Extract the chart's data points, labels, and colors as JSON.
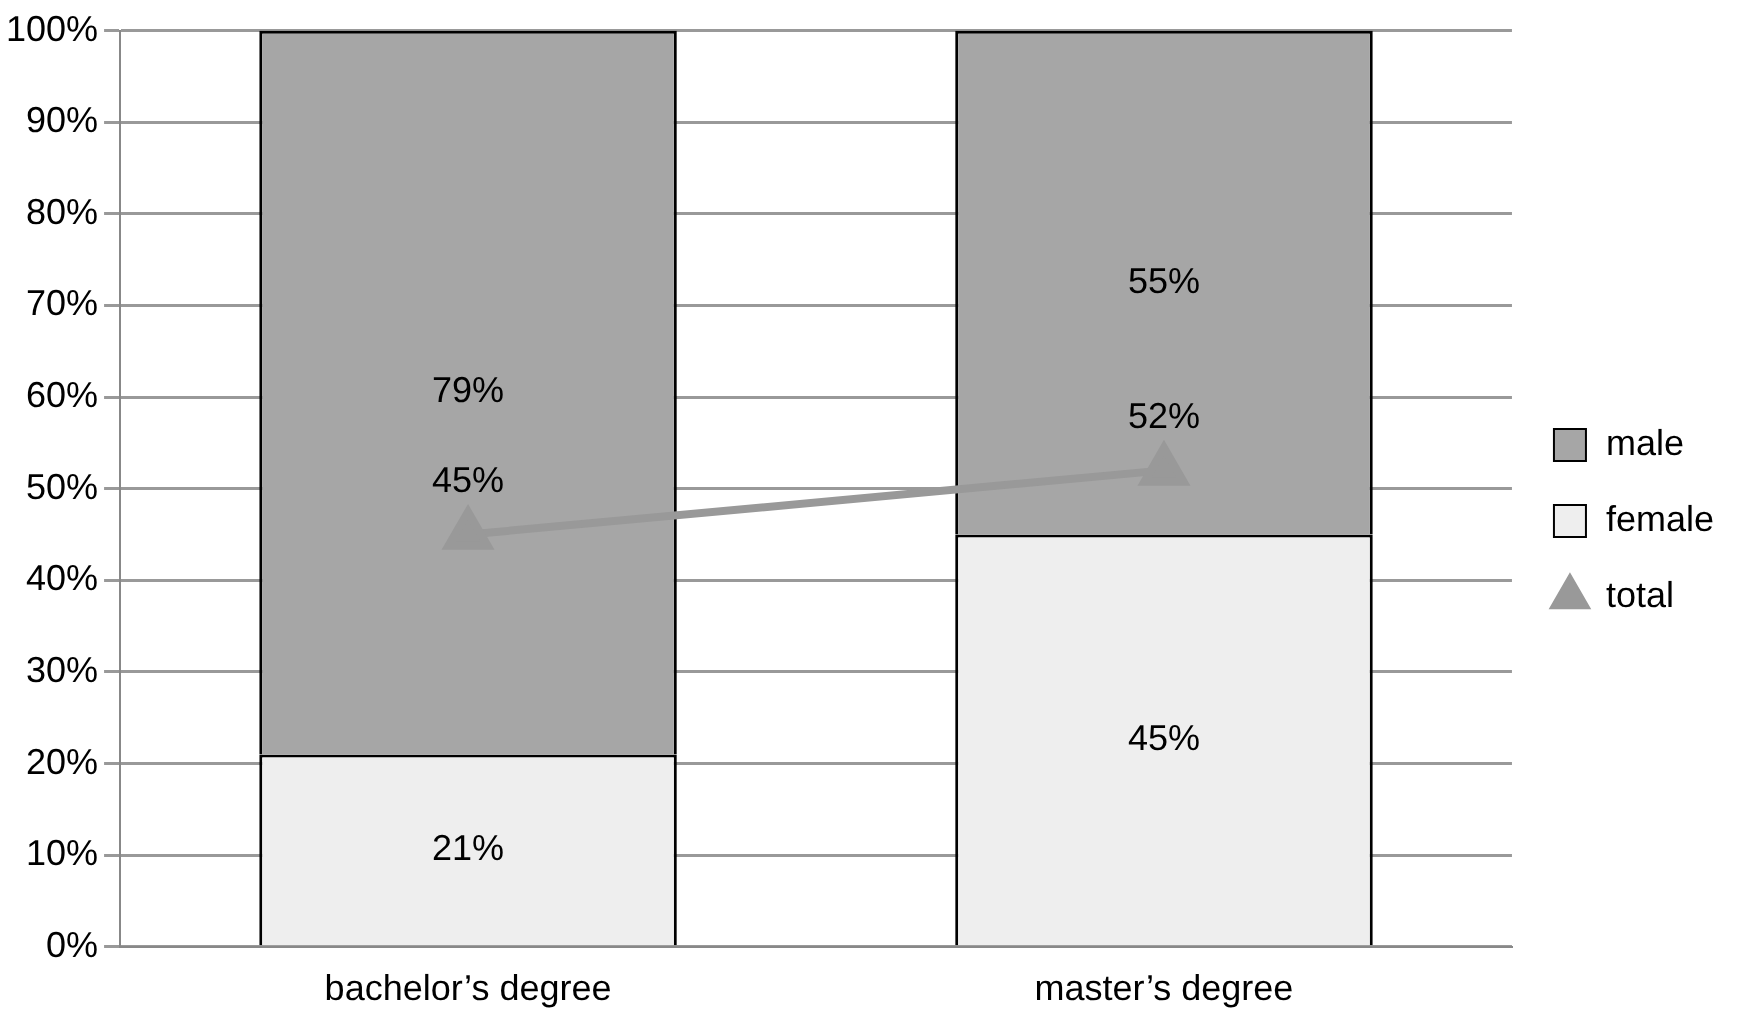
{
  "chart_data": {
    "type": "bar",
    "stacked": true,
    "categories": [
      "bachelor’s degree",
      "master’s degree"
    ],
    "series": [
      {
        "name": "female",
        "color": "#eeeeee",
        "values": [
          21,
          45
        ],
        "value_labels": [
          "21%",
          "45%"
        ]
      },
      {
        "name": "male",
        "color": "#a6a6a6",
        "values": [
          79,
          55
        ],
        "value_labels": [
          "79%",
          "55%"
        ]
      },
      {
        "name": "total",
        "type": "line",
        "color": "#999999",
        "values": [
          45,
          52
        ],
        "value_labels": [
          "45%",
          "52%"
        ]
      }
    ],
    "ylim": [
      0,
      100
    ],
    "yticks": [
      {
        "value": 0,
        "label": "0%"
      },
      {
        "value": 10,
        "label": "10%"
      },
      {
        "value": 20,
        "label": "20%"
      },
      {
        "value": 30,
        "label": "30%"
      },
      {
        "value": 40,
        "label": "40%"
      },
      {
        "value": 50,
        "label": "50%"
      },
      {
        "value": 60,
        "label": "60%"
      },
      {
        "value": 70,
        "label": "70%"
      },
      {
        "value": 80,
        "label": "80%"
      },
      {
        "value": 90,
        "label": "90%"
      },
      {
        "value": 100,
        "label": "100%"
      }
    ],
    "grid": "y",
    "legend": "right",
    "marker": "triangle"
  }
}
